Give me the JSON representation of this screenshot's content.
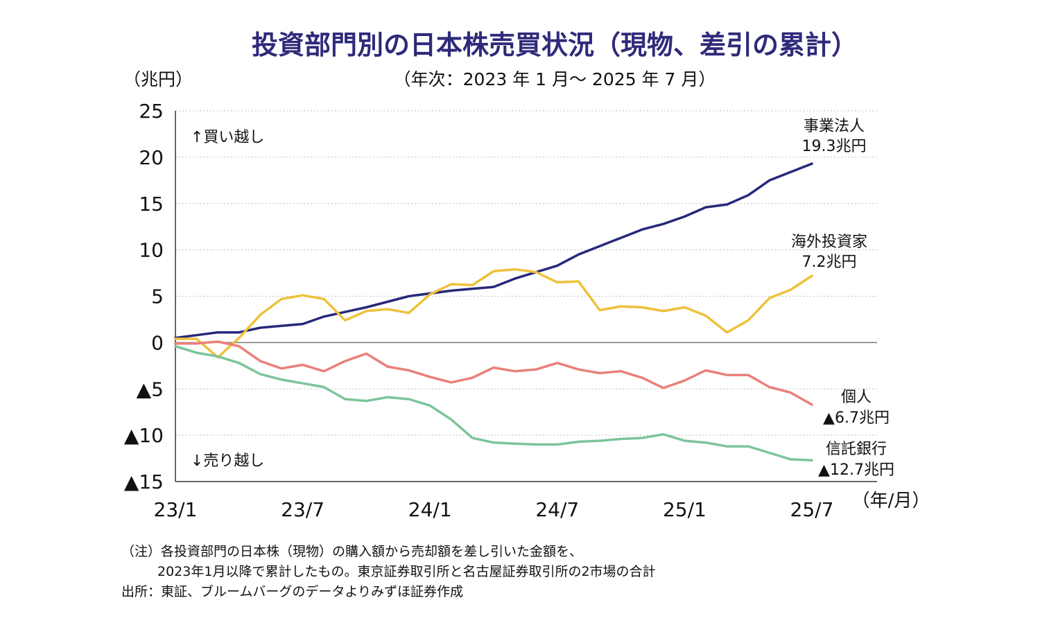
{
  "title": "投資部門別の日本株売買状況（現物、差引の累計）",
  "subtitle": "（年次：2023 年 1 月〜 2025 年 7 月）",
  "unit_label": "（兆円）",
  "notes": {
    "line1": "（注）各投資部門の日本株（現物）の購入額から売却額を差し引いた金額を、",
    "line2": "2023年1月以降で累計したもの。東京証券取引所と名古屋証券取引所の2市場の合計",
    "line3": "出所：東証、ブルームバーグのデータよりみずほ証券作成"
  },
  "chart_data": {
    "type": "line",
    "ylim": [
      -15,
      25
    ],
    "yticks": [
      25,
      20,
      15,
      10,
      5,
      0,
      -5,
      -10,
      -15
    ],
    "ytick_labels": [
      "25",
      "20",
      "15",
      "10",
      "5",
      "0",
      "▲5",
      "▲10",
      "▲15"
    ],
    "xtick_labels": [
      "23/1",
      "23/7",
      "24/1",
      "24/7",
      "25/1",
      "25/7"
    ],
    "xtick_index": [
      0,
      6,
      12,
      18,
      24,
      30
    ],
    "xlabel": "（年/月）",
    "grid": true,
    "annotations": {
      "buy": "↑買い越し",
      "sell": "↓売り越し"
    },
    "categories": [
      "23/1",
      "23/2",
      "23/3",
      "23/4",
      "23/5",
      "23/6",
      "23/7",
      "23/8",
      "23/9",
      "23/10",
      "23/11",
      "23/12",
      "24/1",
      "24/2",
      "24/3",
      "24/4",
      "24/5",
      "24/6",
      "24/7",
      "24/8",
      "24/9",
      "24/10",
      "24/11",
      "24/12",
      "25/1",
      "25/2",
      "25/3",
      "25/4",
      "25/5",
      "25/6",
      "25/7"
    ],
    "series": [
      {
        "name": "事業法人",
        "end_label": "19.3兆円",
        "color": "#27287a",
        "values": [
          0.5,
          0.8,
          1.1,
          1.1,
          1.6,
          1.8,
          2.0,
          2.8,
          3.3,
          3.8,
          4.4,
          5.0,
          5.3,
          5.6,
          5.8,
          6.0,
          6.9,
          7.6,
          8.3,
          9.5,
          10.4,
          11.3,
          12.2,
          12.8,
          13.6,
          14.6,
          14.9,
          15.9,
          17.5,
          18.4,
          19.3
        ]
      },
      {
        "name": "海外投資家",
        "end_label": "7.2兆円",
        "color": "#eec13a",
        "values": [
          0.4,
          0.4,
          -1.6,
          0.5,
          3.0,
          4.7,
          5.1,
          4.7,
          2.4,
          3.4,
          3.6,
          3.2,
          5.2,
          6.3,
          6.2,
          7.7,
          7.9,
          7.6,
          6.5,
          6.6,
          3.5,
          3.9,
          3.8,
          3.4,
          3.8,
          2.9,
          1.1,
          2.4,
          4.8,
          5.7,
          7.2
        ]
      },
      {
        "name": "個人",
        "end_label": "▲6.7兆円",
        "color": "#e98079",
        "values": [
          -0.1,
          -0.1,
          0.1,
          -0.4,
          -2.0,
          -2.8,
          -2.4,
          -3.1,
          -2.0,
          -1.2,
          -2.6,
          -3.0,
          -3.7,
          -4.3,
          -3.8,
          -2.7,
          -3.1,
          -2.9,
          -2.2,
          -2.9,
          -3.3,
          -3.1,
          -3.8,
          -4.9,
          -4.1,
          -3.0,
          -3.5,
          -3.5,
          -4.8,
          -5.4,
          -6.7
        ]
      },
      {
        "name": "信託銀行",
        "end_label": "▲12.7兆円",
        "color": "#7cc49a",
        "values": [
          -0.4,
          -1.1,
          -1.5,
          -2.2,
          -3.4,
          -4.0,
          -4.4,
          -4.8,
          -6.1,
          -6.3,
          -5.9,
          -6.1,
          -6.8,
          -8.3,
          -10.3,
          -10.8,
          -10.9,
          -11.0,
          -11.0,
          -10.7,
          -10.6,
          -10.4,
          -10.3,
          -9.9,
          -10.6,
          -10.8,
          -11.2,
          -11.2,
          -11.9,
          -12.6,
          -12.7
        ]
      }
    ]
  }
}
